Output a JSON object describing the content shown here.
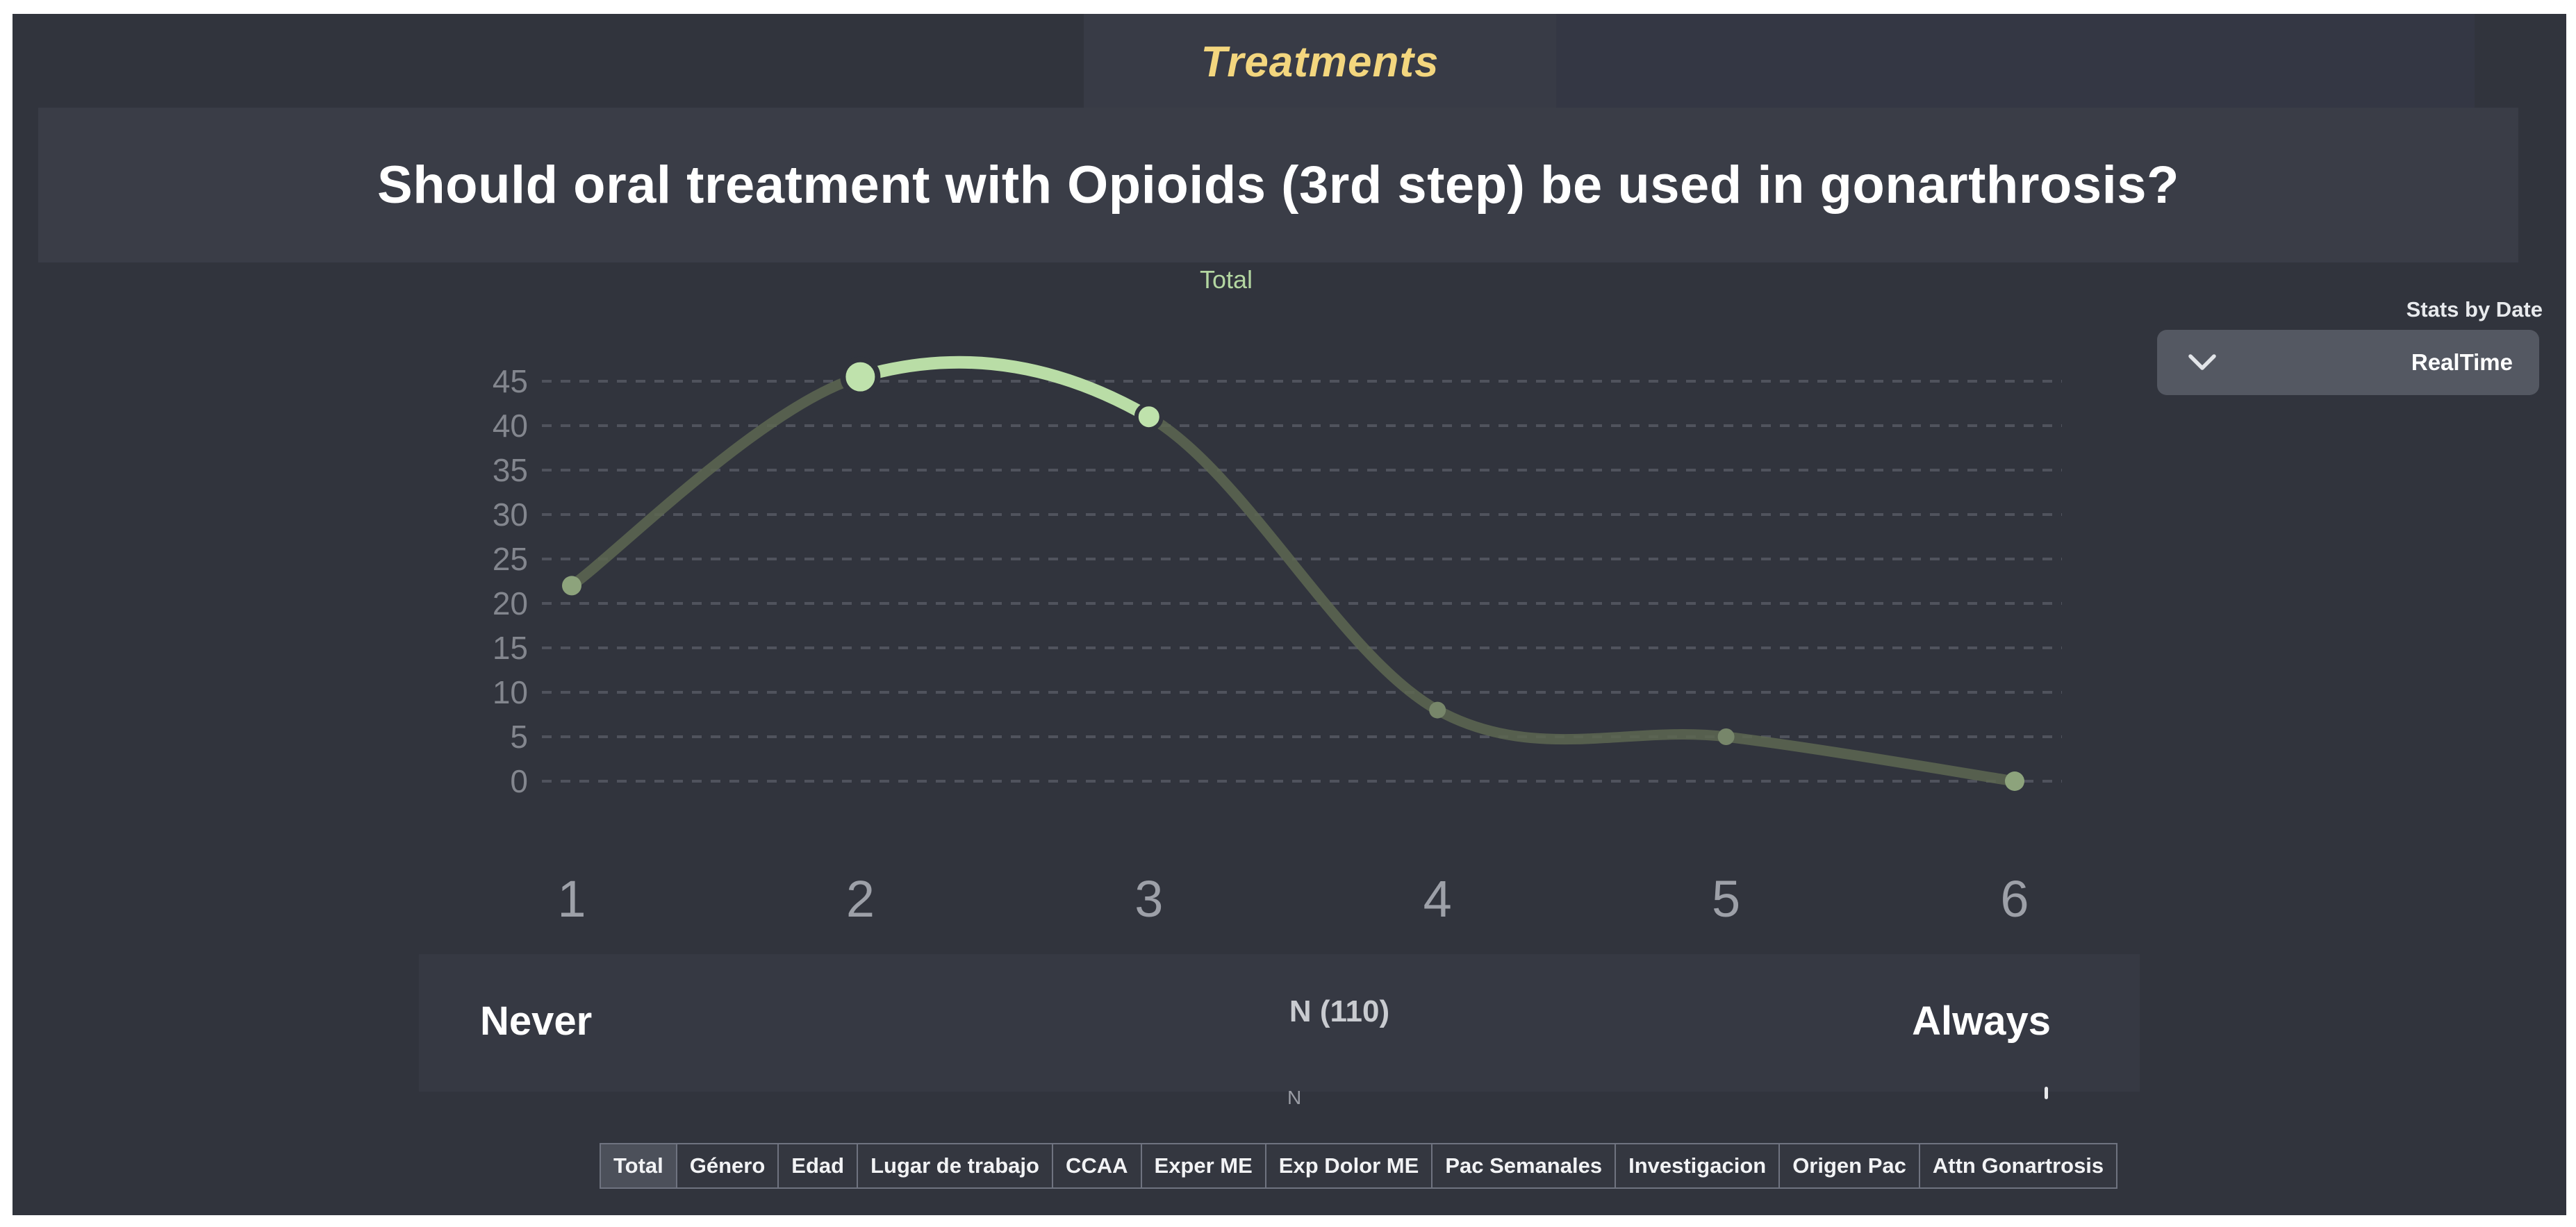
{
  "header": {
    "section_label": "Treatments",
    "question": "Should oral treatment with Opioids (3rd step) be used in gonarthrosis?"
  },
  "controls": {
    "stats_by_date_label": "Stats by Date",
    "period_selected": "RealTime",
    "chevron_icon": "chevron-down"
  },
  "chart_data": {
    "type": "line",
    "title": "Total",
    "legend": [
      "Total"
    ],
    "legend_position": "top-center",
    "x_categories": [
      "1",
      "2",
      "3",
      "4",
      "5",
      "6"
    ],
    "values": [
      22,
      45.5,
      41,
      8,
      5,
      0
    ],
    "highlighted_segment": {
      "from_category": "2",
      "to_category": "3"
    },
    "yticks": [
      0,
      5,
      10,
      15,
      20,
      25,
      30,
      35,
      40,
      45
    ],
    "ylim": [
      0,
      47
    ],
    "grid": "horizontal-dashed",
    "dot_styles": [
      "medium-dim",
      "large-bright",
      "medium-bright",
      "small-dim",
      "small-dim",
      "medium-dim"
    ],
    "scale_annotations": {
      "left": "Never",
      "center": "N (110)",
      "right": "Always",
      "footnote": "N"
    }
  },
  "filter_tabs": {
    "items": [
      {
        "label": "Total",
        "active": true
      },
      {
        "label": "Género",
        "active": false
      },
      {
        "label": "Edad",
        "active": false
      },
      {
        "label": "Lugar de trabajo",
        "active": false
      },
      {
        "label": "CCAA",
        "active": false
      },
      {
        "label": "Exper ME",
        "active": false
      },
      {
        "label": "Exp Dolor ME",
        "active": false
      },
      {
        "label": "Pac Semanales",
        "active": false
      },
      {
        "label": "Investigacion",
        "active": false
      },
      {
        "label": "Origen Pac",
        "active": false
      },
      {
        "label": "Attn Gonartrosis",
        "active": false
      }
    ]
  },
  "colors": {
    "background": "#31343d",
    "panel": "#3a3d47",
    "accent_yellow": "#f3d67e",
    "line_dim": "#5d6751",
    "line_highlight": "#b9dda6",
    "dot_bright": "#bfe2ac",
    "grid": "#50535d",
    "axis_text": "#83868e",
    "x_axis_text": "#9da0a8",
    "dropdown_bg": "#545862",
    "active_tab_bg": "#4c505a"
  }
}
